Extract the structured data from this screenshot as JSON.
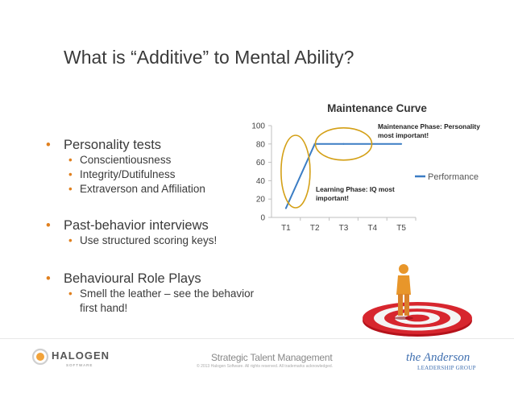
{
  "slide": {
    "title": "What is “Additive” to Mental Ability?",
    "bullets": [
      {
        "label": "Personality tests",
        "sub": [
          "Conscientiousness",
          "Integrity/Dutifulness",
          "Extraverson and Affiliation"
        ]
      },
      {
        "label": "Past-behavior interviews",
        "sub": [
          "Use structured scoring keys!"
        ]
      },
      {
        "label": "Behavioural Role Plays",
        "sub": [
          "Smell the leather – see the behavior first hand!"
        ]
      }
    ],
    "bullet_color": "#e0801f",
    "text_color": "#3a3a3a"
  },
  "chart_data": {
    "type": "line",
    "title": "Maintenance Curve",
    "categories": [
      "T1",
      "T2",
      "T3",
      "T4",
      "T5"
    ],
    "series": [
      {
        "name": "Performance",
        "values": [
          10,
          80,
          80,
          80,
          80
        ],
        "color": "#3b7dc4"
      }
    ],
    "ylim": [
      0,
      100
    ],
    "yticks": [
      0,
      20,
      40,
      60,
      80,
      100
    ],
    "xlabel": "",
    "ylabel": "",
    "grid": false,
    "legend": "right",
    "annotations": [
      {
        "text": "Maintenance Phase: Personality most important!"
      },
      {
        "text": "Learning Phase: IQ most important!"
      }
    ],
    "highlight_color": "#d4a017"
  },
  "footer": {
    "brand": "HALOGEN",
    "brand_sub": "SOFTWARE",
    "center": "Strategic Talent Management",
    "copyright": "© 2013 Halogen Software. All rights reserved. All trademarks acknowledged.",
    "partner": "the Anderson",
    "partner_sub": "LEADERSHIP GROUP"
  }
}
